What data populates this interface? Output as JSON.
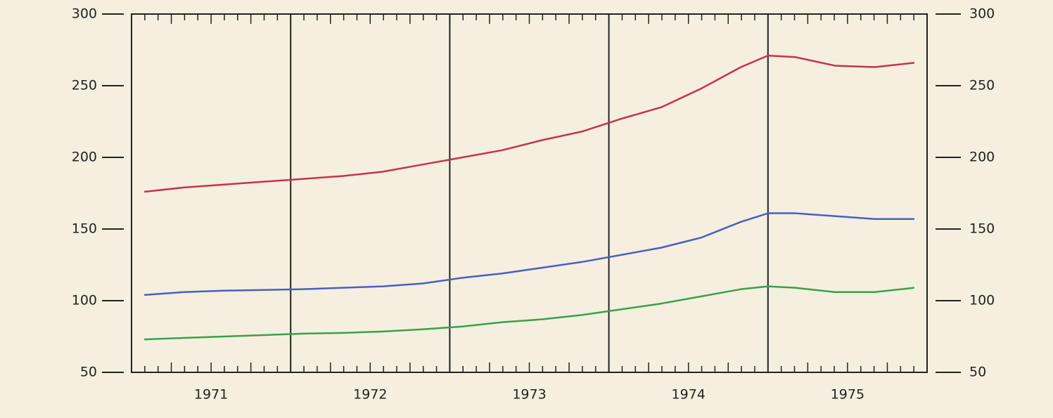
{
  "chart_data": {
    "type": "line",
    "x": [
      1971.08,
      1971.33,
      1971.58,
      1971.83,
      1972.08,
      1972.33,
      1972.58,
      1972.83,
      1973.08,
      1973.33,
      1973.58,
      1973.83,
      1974.08,
      1974.33,
      1974.58,
      1974.83,
      1975.0,
      1975.17,
      1975.42,
      1975.67,
      1975.92
    ],
    "series": [
      {
        "color": "#c8324a",
        "values": [
          176,
          179,
          181,
          183,
          185,
          187,
          190,
          195,
          200,
          205,
          212,
          218,
          227,
          235,
          248,
          263,
          271,
          270,
          264,
          263,
          266
        ]
      },
      {
        "color": "#4a5fc0",
        "values": [
          104,
          106,
          107,
          107.5,
          108,
          109,
          110,
          112,
          116,
          119,
          123,
          127,
          132,
          137,
          144,
          155,
          161,
          161,
          159,
          157,
          157
        ]
      },
      {
        "color": "#3aa04a",
        "values": [
          73,
          74,
          75,
          76,
          77,
          77.5,
          78.5,
          80,
          82,
          85,
          87,
          90,
          94,
          98,
          103,
          108,
          110,
          109,
          106,
          106,
          109
        ]
      }
    ],
    "xlim": [
      1971,
      1976
    ],
    "xticks": [
      {
        "value": 1971.5,
        "label": "1971"
      },
      {
        "value": 1972.5,
        "label": "1972"
      },
      {
        "value": 1973.5,
        "label": "1973"
      },
      {
        "value": 1974.5,
        "label": "1974"
      },
      {
        "value": 1975.5,
        "label": "1975"
      }
    ],
    "year_lines": [
      1972,
      1973,
      1974,
      1975
    ],
    "ylim": [
      50,
      300
    ],
    "yticks": [
      50,
      100,
      150,
      200,
      250,
      300
    ],
    "y2lim": [
      50,
      300
    ],
    "y2ticks": [
      50,
      100,
      150,
      200,
      250,
      300
    ]
  }
}
